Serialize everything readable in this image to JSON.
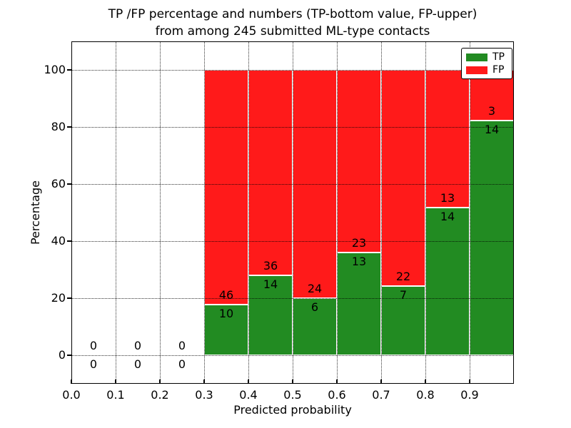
{
  "chart_data": {
    "type": "bar",
    "stacked": true,
    "title_line1": "TP /FP percentage and numbers (TP-bottom value, FP-upper)",
    "title_line2": "from among 245 submitted ML-type contacts",
    "xlabel": "Predicted probability",
    "ylabel": "Percentage",
    "total_contacts": 245,
    "xlim": [
      0.0,
      1.0
    ],
    "ylim": [
      -10,
      110
    ],
    "x_tick_labels": [
      "0.0",
      "0.1",
      "0.2",
      "0.3",
      "0.4",
      "0.5",
      "0.6",
      "0.7",
      "0.8",
      "0.9"
    ],
    "y_tick_values": [
      "0",
      "20",
      "40",
      "60",
      "80",
      "100"
    ],
    "grid": true,
    "legend": {
      "position": "upper-right",
      "entries": [
        {
          "label": "TP",
          "color": "#228B22"
        },
        {
          "label": "FP",
          "color": "#FF1A1A"
        }
      ]
    },
    "colors": {
      "tp": "#228B22",
      "fp": "#FF1A1A"
    },
    "bins": [
      {
        "x0": 0.0,
        "x1": 0.1,
        "tp_count": 0,
        "fp_count": 0
      },
      {
        "x0": 0.1,
        "x1": 0.2,
        "tp_count": 0,
        "fp_count": 0
      },
      {
        "x0": 0.2,
        "x1": 0.3,
        "tp_count": 0,
        "fp_count": 0
      },
      {
        "x0": 0.3,
        "x1": 0.4,
        "tp_count": 10,
        "fp_count": 46
      },
      {
        "x0": 0.4,
        "x1": 0.5,
        "tp_count": 14,
        "fp_count": 36
      },
      {
        "x0": 0.5,
        "x1": 0.6,
        "tp_count": 6,
        "fp_count": 24
      },
      {
        "x0": 0.6,
        "x1": 0.7,
        "tp_count": 13,
        "fp_count": 23
      },
      {
        "x0": 0.7,
        "x1": 0.8,
        "tp_count": 7,
        "fp_count": 22
      },
      {
        "x0": 0.8,
        "x1": 0.9,
        "tp_count": 14,
        "fp_count": 13
      },
      {
        "x0": 0.9,
        "x1": 1.0,
        "tp_count": 14,
        "fp_count": 3
      }
    ]
  }
}
